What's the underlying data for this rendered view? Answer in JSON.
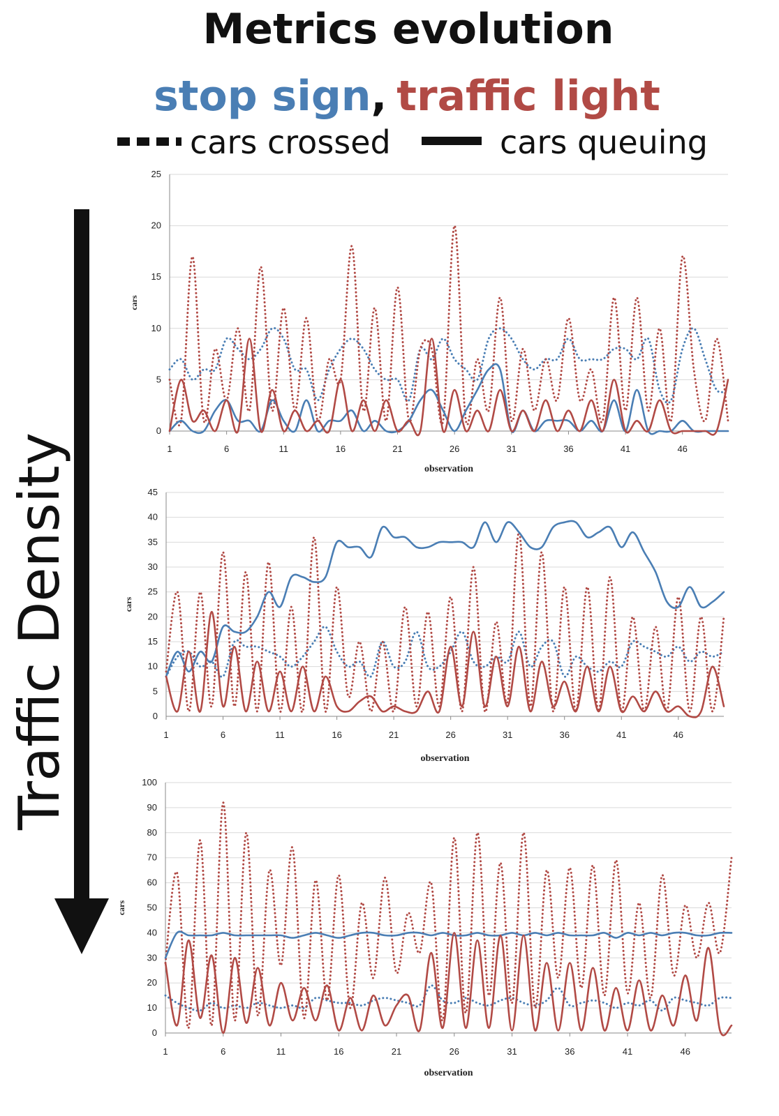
{
  "header": {
    "title": "Metrics evolution",
    "subtitle_stop": "stop sign",
    "subtitle_comma": ",",
    "subtitle_light": "traffic light",
    "legend_dotted": "cars crossed",
    "legend_solid": "cars queuing"
  },
  "side_label": "Traffic Density",
  "colors": {
    "stop_sign": "#4a7eb4",
    "traffic_light": "#b14a45",
    "text": "#111111",
    "grid": "#d9d9d9"
  },
  "chart_data": [
    {
      "type": "line",
      "xlabel": "observation",
      "ylabel": "cars",
      "ylim": [
        0,
        25
      ],
      "yticks": [
        0,
        5,
        10,
        15,
        20,
        25
      ],
      "xlim": [
        1,
        50
      ],
      "xticks": [
        1,
        6,
        11,
        16,
        21,
        26,
        31,
        36,
        41,
        46
      ],
      "grid": true,
      "series": [
        {
          "key": "stop_crossed",
          "color": "#4a7eb4",
          "style": "dotted",
          "values": [
            6,
            7,
            5,
            6,
            6,
            9,
            8,
            7,
            8,
            10,
            9,
            6,
            6,
            3,
            6,
            8,
            9,
            8,
            6,
            5,
            5,
            3,
            8,
            7,
            9,
            7,
            6,
            5,
            9,
            10,
            9,
            7,
            6,
            7,
            7,
            9,
            7,
            7,
            7,
            8,
            8,
            7,
            9,
            4,
            3,
            8,
            10,
            7,
            4,
            4
          ]
        },
        {
          "key": "stop_queuing",
          "color": "#4a7eb4",
          "style": "solid",
          "values": [
            0,
            1,
            0,
            0,
            2,
            3,
            1,
            1,
            0,
            3,
            1,
            0,
            3,
            0,
            1,
            1,
            2,
            0,
            1,
            0,
            0,
            1,
            3,
            4,
            2,
            0,
            2,
            4,
            6,
            6,
            0,
            2,
            0,
            1,
            1,
            1,
            0,
            1,
            0,
            3,
            0,
            4,
            0,
            0,
            0,
            1,
            0,
            0,
            0,
            0
          ]
        },
        {
          "key": "light_crossed",
          "color": "#b14a45",
          "style": "dotted",
          "values": [
            5,
            1,
            17,
            1,
            8,
            3,
            10,
            2,
            16,
            2,
            12,
            2,
            11,
            1,
            7,
            5,
            18,
            2,
            12,
            1,
            14,
            1,
            8,
            8,
            1,
            20,
            1,
            7,
            2,
            13,
            1,
            8,
            2,
            7,
            3,
            11,
            3,
            6,
            1,
            13,
            2,
            13,
            2,
            10,
            1,
            17,
            6,
            1,
            9,
            1
          ]
        },
        {
          "key": "light_queuing",
          "color": "#b14a45",
          "style": "solid",
          "values": [
            0,
            5,
            1,
            2,
            0,
            3,
            0,
            9,
            0,
            4,
            0,
            2,
            0,
            1,
            0,
            5,
            0,
            3,
            0,
            3,
            0,
            1,
            0,
            9,
            0,
            4,
            0,
            2,
            0,
            4,
            0,
            2,
            0,
            3,
            0,
            2,
            0,
            3,
            0,
            5,
            0,
            1,
            0,
            3,
            0,
            0,
            0,
            0,
            0,
            5
          ]
        }
      ]
    },
    {
      "type": "line",
      "xlabel": "observation",
      "ylabel": "cars",
      "ylim": [
        0,
        45
      ],
      "yticks": [
        0,
        5,
        10,
        15,
        20,
        25,
        30,
        35,
        40,
        45
      ],
      "xlim": [
        1,
        50
      ],
      "xticks": [
        1,
        6,
        11,
        16,
        21,
        26,
        31,
        36,
        41,
        46
      ],
      "grid": true,
      "series": [
        {
          "key": "stop_crossed",
          "color": "#4a7eb4",
          "style": "dotted",
          "values": [
            8,
            12,
            13,
            10,
            11,
            8,
            15,
            14,
            14,
            13,
            12,
            10,
            12,
            15,
            18,
            13,
            10,
            11,
            8,
            15,
            10,
            11,
            17,
            10,
            10,
            13,
            17,
            11,
            10,
            12,
            11,
            17,
            10,
            14,
            15,
            8,
            12,
            10,
            9,
            11,
            10,
            15,
            14,
            13,
            12,
            14,
            11,
            13,
            12,
            13
          ]
        },
        {
          "key": "stop_queuing",
          "color": "#4a7eb4",
          "style": "solid",
          "values": [
            8,
            13,
            9,
            13,
            11,
            18,
            17,
            17,
            20,
            25,
            22,
            28,
            28,
            27,
            28,
            35,
            34,
            34,
            32,
            38,
            36,
            36,
            34,
            34,
            35,
            35,
            35,
            34,
            39,
            35,
            39,
            37,
            34,
            34,
            38,
            39,
            39,
            36,
            37,
            38,
            34,
            37,
            33,
            29,
            23,
            22,
            26,
            22,
            23,
            25
          ]
        },
        {
          "key": "light_crossed",
          "color": "#b14a45",
          "style": "dotted",
          "values": [
            9,
            25,
            1,
            25,
            2,
            33,
            2,
            29,
            1,
            31,
            1,
            22,
            1,
            36,
            1,
            26,
            4,
            15,
            1,
            15,
            1,
            22,
            2,
            21,
            2,
            24,
            1,
            30,
            1,
            19,
            3,
            37,
            2,
            33,
            1,
            26,
            1,
            26,
            1,
            28,
            1,
            20,
            1,
            18,
            1,
            24,
            1,
            20,
            1,
            20
          ]
        },
        {
          "key": "light_queuing",
          "color": "#b14a45",
          "style": "solid",
          "values": [
            8,
            1,
            13,
            1,
            21,
            2,
            14,
            1,
            11,
            1,
            9,
            1,
            10,
            1,
            8,
            2,
            1,
            3,
            4,
            1,
            2,
            1,
            1,
            5,
            1,
            14,
            2,
            17,
            2,
            12,
            2,
            14,
            1,
            11,
            2,
            7,
            1,
            10,
            1,
            10,
            1,
            4,
            1,
            5,
            1,
            2,
            0,
            1,
            10,
            2
          ]
        }
      ]
    },
    {
      "type": "line",
      "xlabel": "observation",
      "ylabel": "cars",
      "ylim": [
        0,
        100
      ],
      "yticks": [
        0,
        10,
        20,
        30,
        40,
        50,
        60,
        70,
        80,
        90,
        100
      ],
      "xlim": [
        1,
        50
      ],
      "xticks": [
        1,
        6,
        11,
        16,
        21,
        26,
        31,
        36,
        41,
        46
      ],
      "grid": true,
      "series": [
        {
          "key": "stop_crossed",
          "color": "#4a7eb4",
          "style": "dotted",
          "values": [
            15,
            12,
            10,
            9,
            12,
            10,
            11,
            10,
            12,
            11,
            10,
            11,
            10,
            14,
            13,
            12,
            12,
            11,
            13,
            14,
            13,
            12,
            11,
            19,
            13,
            12,
            14,
            12,
            11,
            13,
            14,
            12,
            11,
            13,
            18,
            11,
            12,
            13,
            12,
            10,
            12,
            11,
            13,
            9,
            14,
            13,
            12,
            11,
            14,
            14
          ]
        },
        {
          "key": "stop_queuing",
          "color": "#4a7eb4",
          "style": "solid",
          "values": [
            30,
            40,
            39,
            39,
            39,
            40,
            39,
            39,
            39,
            39,
            39,
            38,
            39,
            40,
            39,
            38,
            39,
            40,
            40,
            39,
            39,
            40,
            40,
            39,
            40,
            39,
            39,
            40,
            39,
            39,
            40,
            39,
            40,
            39,
            40,
            39,
            39,
            39,
            40,
            38,
            40,
            39,
            40,
            39,
            40,
            40,
            39,
            39,
            40,
            40
          ]
        },
        {
          "key": "light_crossed",
          "color": "#b14a45",
          "style": "dotted",
          "values": [
            28,
            64,
            2,
            77,
            3,
            92,
            5,
            80,
            7,
            65,
            27,
            74,
            6,
            61,
            13,
            63,
            10,
            52,
            22,
            62,
            24,
            48,
            32,
            60,
            5,
            78,
            8,
            80,
            15,
            68,
            12,
            80,
            10,
            65,
            22,
            66,
            18,
            67,
            15,
            69,
            16,
            52,
            14,
            63,
            23,
            51,
            30,
            52,
            32,
            70
          ]
        },
        {
          "key": "light_queuing",
          "color": "#b14a45",
          "style": "solid",
          "values": [
            28,
            3,
            37,
            6,
            31,
            0,
            30,
            4,
            26,
            3,
            20,
            5,
            18,
            5,
            19,
            1,
            14,
            1,
            15,
            3,
            11,
            15,
            1,
            32,
            2,
            40,
            2,
            37,
            2,
            39,
            1,
            39,
            1,
            28,
            1,
            28,
            1,
            26,
            1,
            18,
            1,
            21,
            1,
            15,
            3,
            23,
            5,
            34,
            1,
            3
          ]
        }
      ]
    }
  ]
}
